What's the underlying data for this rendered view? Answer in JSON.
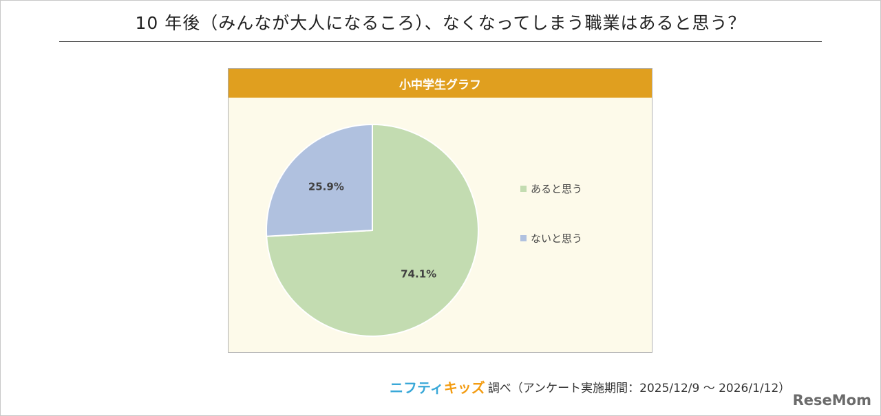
{
  "page": {
    "title": "10 年後（みんなが大人になるころ）、なくなってしまう職業はあると思う？"
  },
  "chart_data": {
    "type": "pie",
    "title": "小中学生グラフ",
    "slices": [
      {
        "label": "あると思う",
        "value": 74.1,
        "display": "74.1%",
        "color": "#c3dcb1"
      },
      {
        "label": "ないと思う",
        "value": 25.9,
        "display": "25.9%",
        "color": "#b0c1df"
      }
    ],
    "legend_position": "right"
  },
  "footer": {
    "logo_part1": "ニフティ",
    "logo_part2": "キッズ",
    "text": "調べ（アンケート実施期間：2025/12/9 ～ 2026/1/12）"
  },
  "watermark": {
    "text": "ReseMom"
  }
}
